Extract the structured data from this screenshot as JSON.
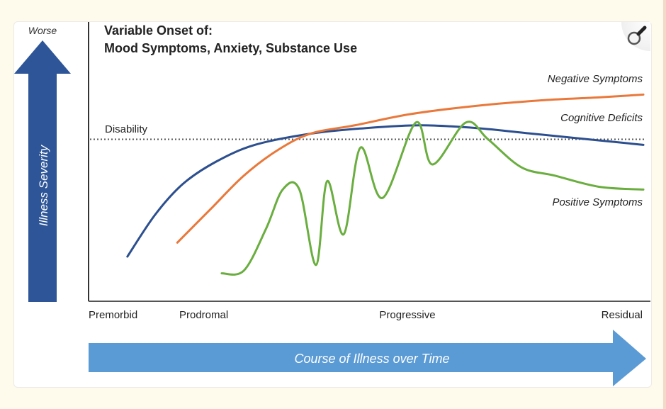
{
  "figure": {
    "worse_label": "Worse",
    "severity_label": "Illness Severity",
    "title_line1": "Variable Onset of:",
    "title_line2": "Mood Symptoms, Anxiety, Substance Use",
    "disability_label": "Disability",
    "time_label": "Course of Illness over Time",
    "zoom_button": "magnifier-icon"
  },
  "colors": {
    "page_bg": "#fefbed",
    "severity_arrow": "#2d5597",
    "time_arrow": "#5b9bd5",
    "negative": "#e9783a",
    "cognitive": "#2c4f8f",
    "positive": "#6aae3f",
    "axis": "#333333"
  },
  "chart_data": {
    "type": "line",
    "title": "Variable Onset of: Mood Symptoms, Anxiety, Substance Use",
    "xlabel": "Course of Illness over Time",
    "ylabel": "Illness Severity",
    "y_top_label": "Worse",
    "x_stage_labels": [
      "Premorbid",
      "Prodromal",
      "Progressive",
      "Residual"
    ],
    "x_stage_positions": [
      0.0,
      0.16,
      0.57,
      1.0
    ],
    "xlim": [
      0,
      1
    ],
    "ylim": [
      0,
      1
    ],
    "reference_lines": [
      {
        "name": "Disability",
        "y": 0.58,
        "style": "dotted"
      }
    ],
    "series": [
      {
        "name": "Cognitive Deficits",
        "color": "#2c4f8f",
        "points": [
          [
            0.07,
            0.16
          ],
          [
            0.12,
            0.31
          ],
          [
            0.17,
            0.42
          ],
          [
            0.23,
            0.5
          ],
          [
            0.3,
            0.56
          ],
          [
            0.4,
            0.6
          ],
          [
            0.5,
            0.62
          ],
          [
            0.6,
            0.63
          ],
          [
            0.7,
            0.62
          ],
          [
            0.8,
            0.6
          ],
          [
            0.9,
            0.58
          ],
          [
            1.0,
            0.56
          ]
        ]
      },
      {
        "name": "Negative Symptoms",
        "color": "#e9783a",
        "points": [
          [
            0.16,
            0.21
          ],
          [
            0.22,
            0.33
          ],
          [
            0.28,
            0.45
          ],
          [
            0.34,
            0.54
          ],
          [
            0.4,
            0.6
          ],
          [
            0.48,
            0.63
          ],
          [
            0.58,
            0.67
          ],
          [
            0.7,
            0.7
          ],
          [
            0.82,
            0.72
          ],
          [
            0.92,
            0.73
          ],
          [
            1.0,
            0.74
          ]
        ]
      },
      {
        "name": "Positive Symptoms",
        "color": "#6aae3f",
        "points": [
          [
            0.24,
            0.1
          ],
          [
            0.28,
            0.11
          ],
          [
            0.32,
            0.26
          ],
          [
            0.35,
            0.4
          ],
          [
            0.38,
            0.4
          ],
          [
            0.41,
            0.13
          ],
          [
            0.43,
            0.43
          ],
          [
            0.46,
            0.24
          ],
          [
            0.49,
            0.55
          ],
          [
            0.53,
            0.37
          ],
          [
            0.59,
            0.64
          ],
          [
            0.62,
            0.49
          ],
          [
            0.68,
            0.64
          ],
          [
            0.72,
            0.58
          ],
          [
            0.78,
            0.48
          ],
          [
            0.84,
            0.45
          ],
          [
            0.92,
            0.41
          ],
          [
            1.0,
            0.4
          ]
        ]
      }
    ]
  }
}
